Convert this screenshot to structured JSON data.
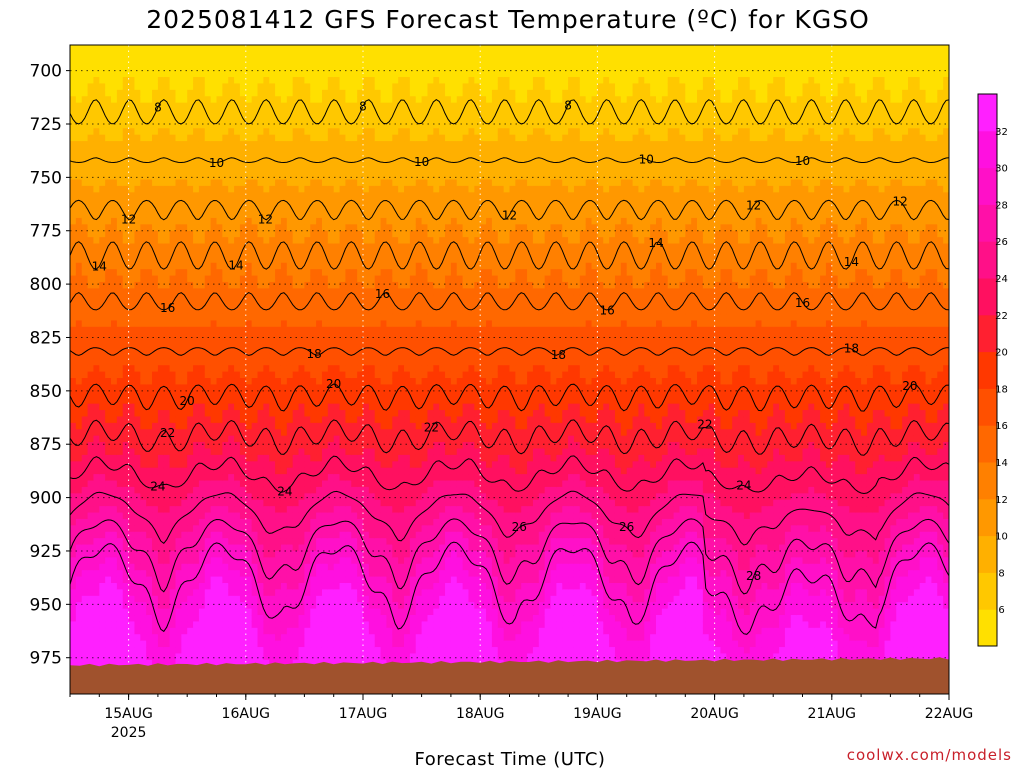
{
  "chart_data": {
    "type": "heatmap",
    "title": "2025081412 GFS Forecast Temperature (ºC) for KGSO",
    "xlabel": "Forecast Time (UTC)",
    "ylabel": "",
    "credit": "coolwx.com/models",
    "x_ticks": [
      {
        "label": "15AUG",
        "sub": "2025",
        "hour": 12
      },
      {
        "label": "16AUG",
        "sub": "",
        "hour": 36
      },
      {
        "label": "17AUG",
        "sub": "",
        "hour": 60
      },
      {
        "label": "18AUG",
        "sub": "",
        "hour": 84
      },
      {
        "label": "19AUG",
        "sub": "",
        "hour": 108
      },
      {
        "label": "20AUG",
        "sub": "",
        "hour": 132
      },
      {
        "label": "21AUG",
        "sub": "",
        "hour": 156
      },
      {
        "label": "22AUG",
        "sub": "",
        "hour": 180
      }
    ],
    "xlim_hours": [
      0,
      180
    ],
    "y_ticks": [
      "700",
      "725",
      "750",
      "775",
      "800",
      "825",
      "850",
      "875",
      "900",
      "925",
      "950",
      "975"
    ],
    "ylim_hpa": [
      688,
      992
    ],
    "colorbar": {
      "ticks": [
        "6",
        "8",
        "10",
        "12",
        "14",
        "16",
        "18",
        "20",
        "22",
        "24",
        "26",
        "28",
        "30",
        "32"
      ],
      "colors": [
        "#ffe000",
        "#ffc800",
        "#ffb000",
        "#ff9800",
        "#ff8000",
        "#ff6800",
        "#ff5000",
        "#ff3800",
        "#ff2030",
        "#ff1060",
        "#ff1088",
        "#ff10a8",
        "#ff10c8",
        "#ff10e0",
        "#ff20ff"
      ]
    },
    "contour_labels": [
      "8",
      "10",
      "12",
      "14",
      "16",
      "18",
      "20",
      "22",
      "24",
      "26",
      "28"
    ]
  }
}
